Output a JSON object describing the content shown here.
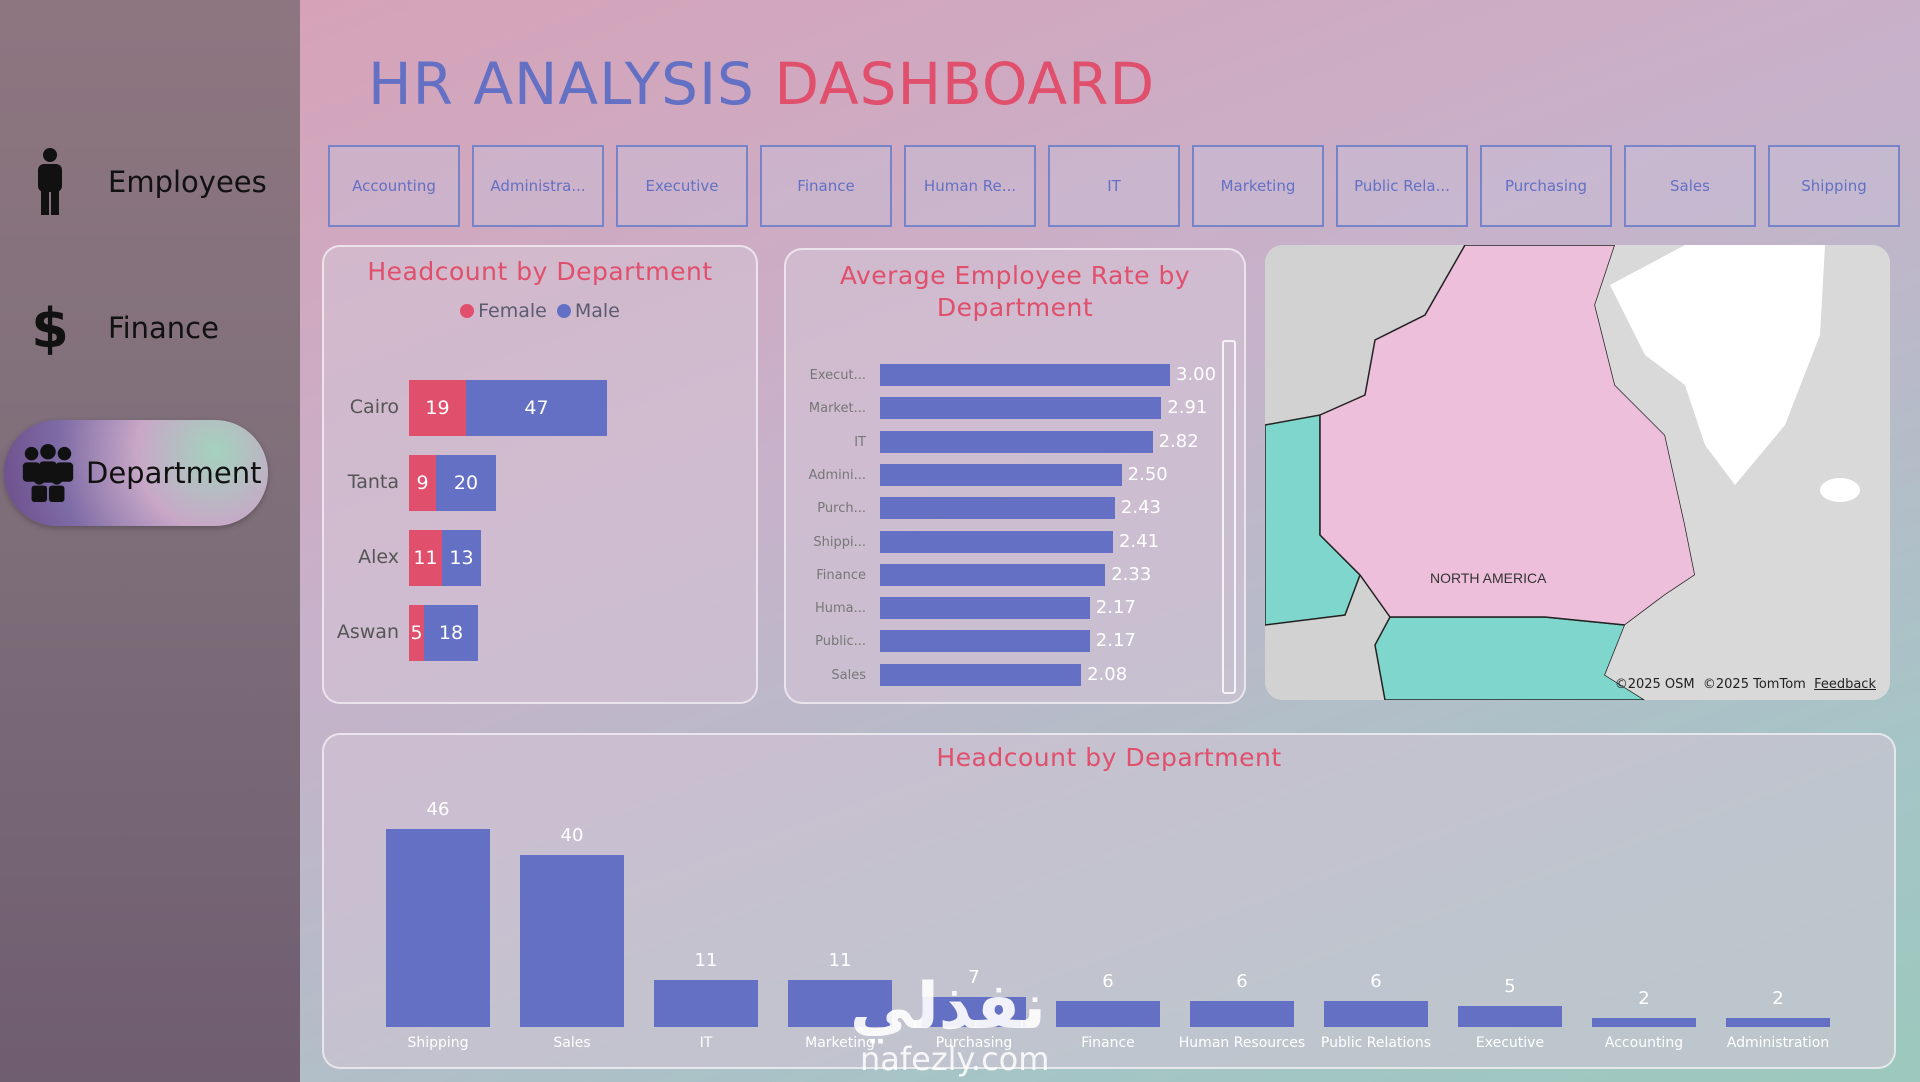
{
  "sidebar": {
    "items": [
      {
        "label": "Employees",
        "icon": "person-icon"
      },
      {
        "label": "Finance",
        "icon": "dollar-icon"
      },
      {
        "label": "Department",
        "icon": "group-icon",
        "active": true
      }
    ]
  },
  "header": {
    "title_part1": "HR ANALYSIS",
    "title_part2": "DASHBOARD"
  },
  "slicers": [
    "Accounting",
    "Administra...",
    "Executive",
    "Finance",
    "Human Re...",
    "IT",
    "Marketing",
    "Public Rela...",
    "Purchasing",
    "Sales",
    "Shipping"
  ],
  "colors": {
    "female": "#e04f6c",
    "male": "#6470c4",
    "title_blue": "#6470c4",
    "title_red": "#e04f6c"
  },
  "chart_data": [
    {
      "type": "bar",
      "title": "Headcount by Department",
      "orientation": "horizontal-stacked",
      "legend": [
        "Female",
        "Male"
      ],
      "categories": [
        "Cairo",
        "Tanta",
        "Alex",
        "Aswan"
      ],
      "series": [
        {
          "name": "Female",
          "values": [
            19,
            9,
            11,
            5
          ]
        },
        {
          "name": "Male",
          "values": [
            47,
            20,
            13,
            18
          ]
        }
      ]
    },
    {
      "type": "bar",
      "title": "Average Employee Rate by Department",
      "orientation": "horizontal",
      "categories": [
        "Execut...",
        "Market...",
        "IT",
        "Admini...",
        "Purch...",
        "Shippi...",
        "Finance",
        "Huma...",
        "Public...",
        "Sales"
      ],
      "values": [
        3.0,
        2.91,
        2.82,
        2.5,
        2.43,
        2.41,
        2.33,
        2.17,
        2.17,
        2.08
      ],
      "value_labels": [
        "3.00",
        "2.91",
        "2.82",
        "2.50",
        "2.43",
        "2.41",
        "2.33",
        "2.17",
        "2.17",
        "2.08"
      ]
    },
    {
      "type": "bar",
      "title": "Headcount by Department",
      "orientation": "vertical",
      "categories": [
        "Shipping",
        "Sales",
        "IT",
        "Marketing",
        "Purchasing",
        "Finance",
        "Human Resources",
        "Public Relations",
        "Executive",
        "Accounting",
        "Administration"
      ],
      "values": [
        46,
        40,
        11,
        11,
        7,
        6,
        6,
        6,
        5,
        2,
        2
      ],
      "value_labels": [
        "46",
        "40",
        "11",
        "11",
        "7",
        "6",
        "6",
        "6",
        "5",
        "2",
        "2"
      ]
    }
  ],
  "map": {
    "region_label": "NORTH AMERICA",
    "credit_osm": "©2025 OSM",
    "credit_tomtom": "©2025 TomTom",
    "feedback": "Feedback"
  },
  "watermark": {
    "text_ar": "نفذلي",
    "text_en": "nafezly.com"
  }
}
